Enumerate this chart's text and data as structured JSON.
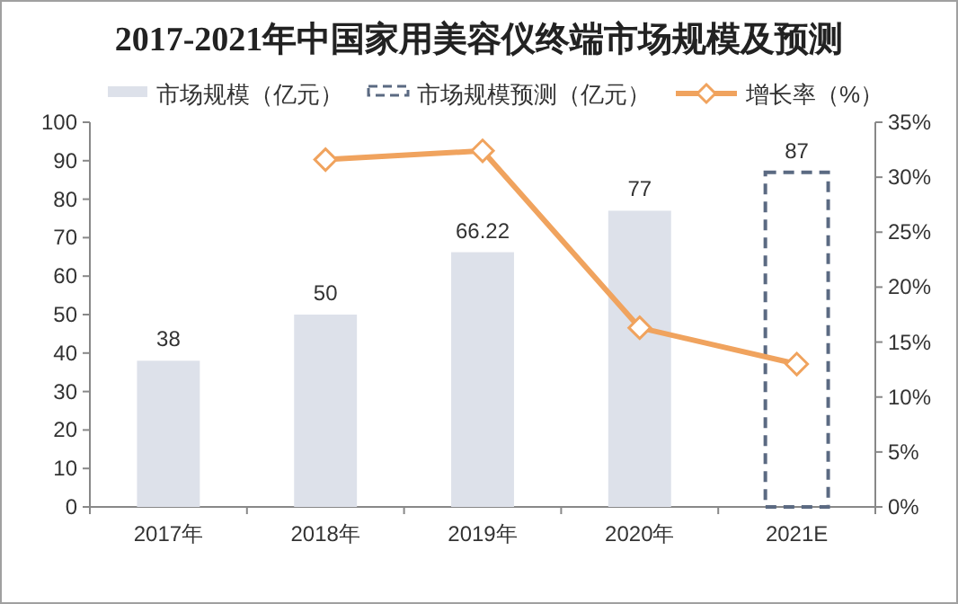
{
  "chart_data": {
    "type": "bar",
    "title": "2017-2021年中国家用美容仪终端市场规模及预测",
    "categories": [
      "2017年",
      "2018年",
      "2019年",
      "2020年",
      "2021E"
    ],
    "series": [
      {
        "name": "市场规模（亿元）",
        "color": "#dde1ea",
        "values": [
          38,
          50,
          66.22,
          77,
          null
        ],
        "value_labels": [
          "38",
          "50",
          "66.22",
          "77",
          null
        ]
      },
      {
        "name": "市场规模预测（亿元）",
        "color": "#5b6a82",
        "line_style": "dashed",
        "values": [
          null,
          null,
          null,
          null,
          87
        ],
        "value_labels": [
          null,
          null,
          null,
          null,
          "87"
        ]
      },
      {
        "name": "增长率（%）",
        "type": "line",
        "axis": "y2",
        "color": "#f0a35e",
        "marker": "diamond",
        "values": [
          null,
          31.6,
          32.4,
          16.3,
          13.0
        ]
      }
    ],
    "ylim": [
      0,
      100
    ],
    "yticks": [
      0,
      10,
      20,
      30,
      40,
      50,
      60,
      70,
      80,
      90,
      100
    ],
    "y2lim": [
      0,
      35
    ],
    "y2ticks": [
      {
        "value": 0,
        "label": "0%"
      },
      {
        "value": 5,
        "label": "5%"
      },
      {
        "value": 10,
        "label": "10%"
      },
      {
        "value": 15,
        "label": "15%"
      },
      {
        "value": 20,
        "label": "20%"
      },
      {
        "value": 25,
        "label": "25%"
      },
      {
        "value": 30,
        "label": "30%"
      },
      {
        "value": 35,
        "label": "35%"
      }
    ],
    "grid": false,
    "legend": "top"
  }
}
